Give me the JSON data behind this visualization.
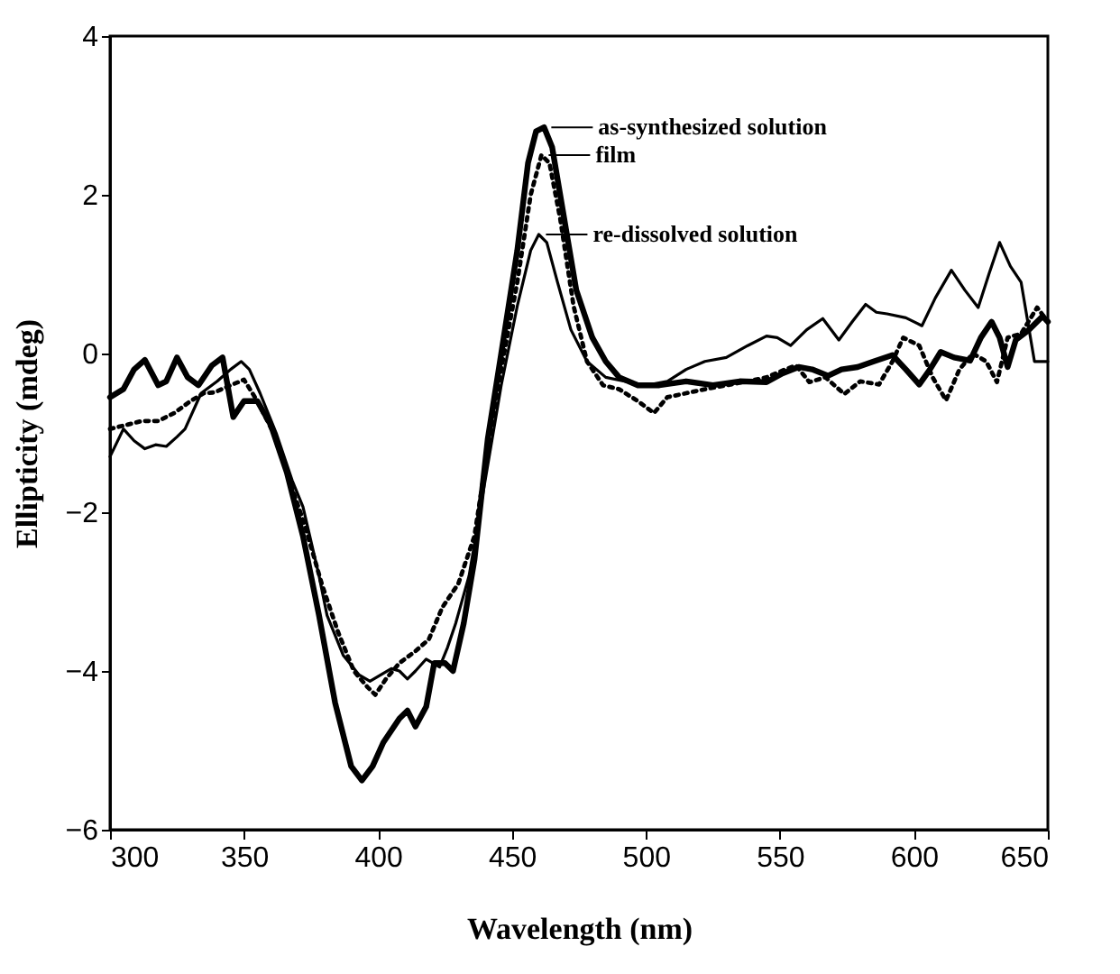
{
  "chart_data": {
    "type": "line",
    "xlabel": "Wavelength (nm)",
    "ylabel": "Ellipticity (mdeg)",
    "xlim": [
      300,
      650
    ],
    "xticks": [
      300,
      350,
      400,
      450,
      500,
      550,
      600,
      650
    ],
    "ylim": [
      -6,
      4
    ],
    "yticks": [
      -6,
      -4,
      -2,
      0,
      2,
      4
    ],
    "grid": false,
    "marker": "none",
    "annotations": [
      {
        "text": "as-synthesized solution",
        "x": 462,
        "y": 2.85
      },
      {
        "text": "film",
        "x": 461,
        "y": 2.5
      },
      {
        "text": "re-dissolved solution",
        "x": 460,
        "y": 1.5
      }
    ],
    "series": [
      {
        "color": "#000000",
        "line_style": "solid",
        "x": [
          300,
          305,
          309,
          313,
          318,
          321,
          325,
          329,
          333,
          338,
          342,
          346,
          350,
          355,
          360,
          366,
          372,
          378,
          384,
          390,
          394,
          398,
          402,
          408,
          411,
          414,
          418,
          421,
          425,
          428,
          432,
          436,
          441,
          446,
          452,
          456,
          459,
          462,
          465,
          469,
          474,
          480,
          485,
          490,
          497,
          505,
          515,
          525,
          535,
          545,
          551,
          557,
          562,
          568,
          573,
          579,
          585,
          592,
          597,
          602,
          606,
          610,
          615,
          621,
          625,
          629,
          632,
          635,
          638,
          643,
          648,
          650
        ],
        "values": [
          -0.55,
          -0.45,
          -0.2,
          -0.08,
          -0.4,
          -0.35,
          -0.05,
          -0.3,
          -0.4,
          -0.15,
          -0.05,
          -0.8,
          -0.6,
          -0.6,
          -0.9,
          -1.5,
          -2.3,
          -3.3,
          -4.4,
          -5.2,
          -5.38,
          -5.2,
          -4.9,
          -4.6,
          -4.5,
          -4.7,
          -4.45,
          -3.9,
          -3.9,
          -4.0,
          -3.4,
          -2.6,
          -1.07,
          0.0,
          1.3,
          2.4,
          2.8,
          2.85,
          2.6,
          1.8,
          0.8,
          0.2,
          -0.1,
          -0.3,
          -0.4,
          -0.4,
          -0.35,
          -0.4,
          -0.35,
          -0.36,
          -0.25,
          -0.17,
          -0.2,
          -0.28,
          -0.2,
          -0.17,
          -0.1,
          -0.02,
          -0.2,
          -0.39,
          -0.2,
          0.02,
          -0.05,
          -0.09,
          0.2,
          0.4,
          0.2,
          -0.17,
          0.17,
          0.3,
          0.47,
          0.4
        ]
      },
      {
        "color": "#000000",
        "line_style": "dotted",
        "x": [
          300,
          306,
          312,
          318,
          324,
          330,
          335,
          339,
          345,
          350,
          355,
          361,
          367,
          373,
          379,
          385,
          391,
          396,
          399,
          403,
          408,
          414,
          419,
          424,
          430,
          436,
          441,
          446,
          452,
          457,
          461,
          464,
          468,
          473,
          478,
          484,
          490,
          497,
          503,
          508,
          515,
          522,
          530,
          538,
          545,
          552,
          556,
          561,
          567,
          574,
          580,
          587,
          592,
          596,
          602,
          607,
          612,
          617,
          622,
          627,
          631,
          635,
          640,
          646,
          650
        ],
        "values": [
          -0.95,
          -0.9,
          -0.85,
          -0.85,
          -0.75,
          -0.6,
          -0.5,
          -0.49,
          -0.4,
          -0.33,
          -0.6,
          -1.0,
          -1.6,
          -2.2,
          -2.9,
          -3.5,
          -4.0,
          -4.2,
          -4.3,
          -4.1,
          -3.9,
          -3.75,
          -3.6,
          -3.2,
          -2.9,
          -2.3,
          -1.2,
          -0.2,
          0.9,
          2.0,
          2.5,
          2.4,
          1.7,
          0.6,
          -0.1,
          -0.4,
          -0.45,
          -0.6,
          -0.75,
          -0.55,
          -0.5,
          -0.45,
          -0.4,
          -0.35,
          -0.3,
          -0.2,
          -0.15,
          -0.36,
          -0.3,
          -0.51,
          -0.35,
          -0.39,
          -0.1,
          0.2,
          0.1,
          -0.3,
          -0.59,
          -0.2,
          0.0,
          -0.1,
          -0.36,
          0.2,
          0.25,
          0.58,
          0.4
        ]
      },
      {
        "color": "#000000",
        "line_style": "solid",
        "x": [
          300,
          305,
          309,
          313,
          317,
          321,
          325,
          328,
          334,
          340,
          345,
          349,
          352,
          356,
          362,
          368,
          372,
          378,
          381,
          387,
          393,
          397,
          401,
          405,
          408,
          411,
          414,
          418,
          423,
          426,
          429,
          434,
          440,
          446,
          452,
          457,
          460,
          463,
          467,
          472,
          478,
          485,
          492,
          500,
          508,
          515,
          522,
          530,
          538,
          545,
          549,
          554,
          560,
          566,
          572,
          577,
          582,
          586,
          590,
          597,
          603,
          608,
          614,
          619,
          624,
          628,
          632,
          636,
          640,
          643,
          645,
          650
        ],
        "values": [
          -1.3,
          -0.95,
          -1.1,
          -1.2,
          -1.15,
          -1.17,
          -1.05,
          -0.95,
          -0.5,
          -0.35,
          -0.2,
          -0.1,
          -0.2,
          -0.5,
          -1.0,
          -1.6,
          -1.93,
          -2.8,
          -3.3,
          -3.8,
          -4.05,
          -4.13,
          -4.05,
          -3.97,
          -4.0,
          -4.1,
          -4.0,
          -3.85,
          -3.95,
          -3.7,
          -3.4,
          -2.8,
          -1.6,
          -0.4,
          0.6,
          1.3,
          1.5,
          1.4,
          0.9,
          0.3,
          -0.1,
          -0.3,
          -0.35,
          -0.4,
          -0.35,
          -0.2,
          -0.1,
          -0.05,
          0.1,
          0.22,
          0.2,
          0.1,
          0.3,
          0.44,
          0.17,
          0.4,
          0.62,
          0.52,
          0.5,
          0.45,
          0.35,
          0.7,
          1.05,
          0.8,
          0.58,
          1.0,
          1.4,
          1.1,
          0.9,
          0.3,
          -0.1,
          -0.1
        ]
      }
    ]
  }
}
